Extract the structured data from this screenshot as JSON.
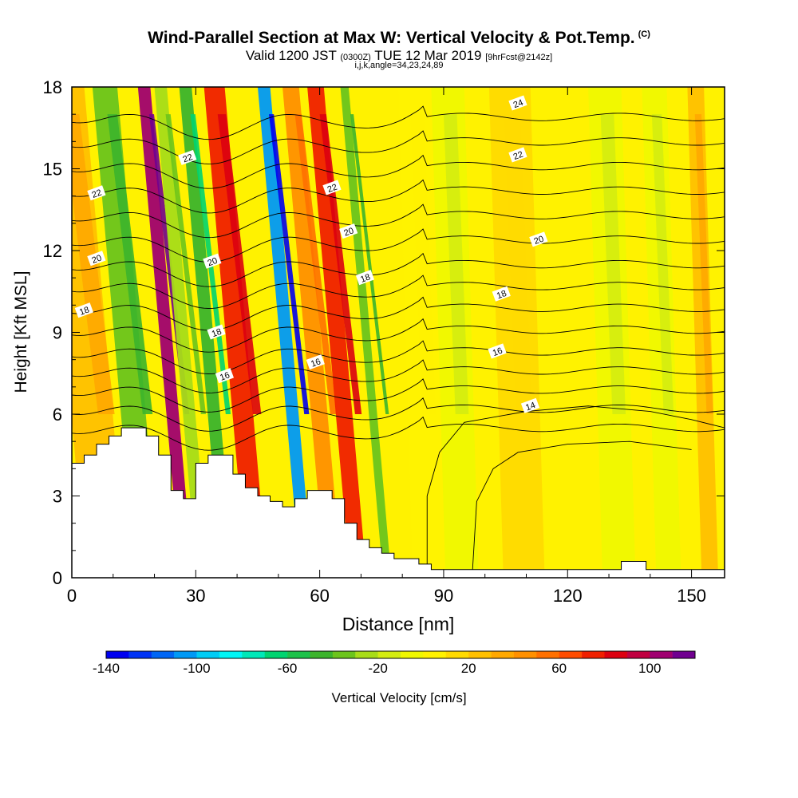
{
  "title": {
    "main": "Wind-Parallel Section at Max W: Vertical Velocity & Pot.Temp.",
    "copyright": "(C)",
    "valid_prefix": "Valid 1200 JST",
    "valid_utc": "(0300Z)",
    "valid_date": "TUE 12 Mar 2019",
    "forecast": "[9hrFcst@2142z]",
    "indices": "i,j,k,angle=34,23,24,89"
  },
  "chart_data": {
    "type": "heatmap",
    "xlabel": "Distance [nm]",
    "ylabel": "Height [Kft MSL]",
    "xlim": [
      0,
      158
    ],
    "ylim": [
      0,
      18
    ],
    "xticks": [
      0,
      30,
      60,
      90,
      120,
      150
    ],
    "yticks": [
      0,
      3,
      6,
      9,
      12,
      15,
      18
    ],
    "terrain": {
      "x": [
        0,
        3,
        6,
        9,
        12,
        18,
        21,
        24,
        27,
        30,
        33,
        36,
        39,
        42,
        45,
        48,
        51,
        54,
        57,
        60,
        63,
        66,
        69,
        72,
        75,
        78,
        81,
        84,
        87,
        90,
        93,
        96,
        100,
        110,
        120,
        130,
        133,
        136,
        139,
        142,
        150,
        158
      ],
      "height": [
        4.2,
        4.5,
        4.9,
        5.2,
        5.5,
        5.2,
        4.5,
        3.2,
        2.9,
        4.2,
        4.5,
        4.5,
        3.8,
        3.3,
        3.0,
        2.8,
        2.6,
        2.9,
        3.2,
        3.2,
        2.9,
        2.0,
        1.4,
        1.1,
        0.9,
        0.7,
        0.7,
        0.5,
        0.3,
        0.3,
        0.3,
        0.3,
        0.3,
        0.3,
        0.3,
        0.3,
        0.6,
        0.6,
        0.3,
        0.3,
        0.3,
        0.3
      ]
    },
    "velocity_bands": [
      {
        "x0": 2,
        "x1": 12,
        "w": 25
      },
      {
        "x0": 14,
        "x1": 20,
        "w": -40
      },
      {
        "x0": 25,
        "x1": 28,
        "w": 100
      },
      {
        "x0": 29,
        "x1": 32,
        "w": -25
      },
      {
        "x0": 35,
        "x1": 38,
        "w": -50
      },
      {
        "x0": 41,
        "x1": 46,
        "w": 70
      },
      {
        "x0": 54,
        "x1": 57,
        "w": -105
      },
      {
        "x0": 60,
        "x1": 64,
        "w": 45
      },
      {
        "x0": 66,
        "x1": 70,
        "w": 70
      },
      {
        "x0": 74,
        "x1": 76,
        "w": -40
      },
      {
        "x0": 82,
        "x1": 90,
        "w": 5
      },
      {
        "x0": 90,
        "x1": 98,
        "w": -10
      },
      {
        "x0": 104,
        "x1": 114,
        "w": 15
      },
      {
        "x0": 128,
        "x1": 136,
        "w": -10
      },
      {
        "x0": 141,
        "x1": 147,
        "w": -10
      },
      {
        "x0": 152,
        "x1": 156,
        "w": 25
      }
    ],
    "pot_temp_contours": {
      "levels": [
        14,
        16,
        18,
        20,
        22,
        24
      ],
      "labels": [
        {
          "text": "14",
          "x": 111,
          "y": 6.3
        },
        {
          "text": "16",
          "x": 37,
          "y": 7.4
        },
        {
          "text": "16",
          "x": 59,
          "y": 7.9
        },
        {
          "text": "16",
          "x": 103,
          "y": 8.3
        },
        {
          "text": "18",
          "x": 3,
          "y": 9.8
        },
        {
          "text": "18",
          "x": 35,
          "y": 9.0
        },
        {
          "text": "18",
          "x": 71,
          "y": 11.0
        },
        {
          "text": "18",
          "x": 104,
          "y": 10.4
        },
        {
          "text": "20",
          "x": 6,
          "y": 11.7
        },
        {
          "text": "20",
          "x": 34,
          "y": 11.6
        },
        {
          "text": "20",
          "x": 67,
          "y": 12.7
        },
        {
          "text": "20",
          "x": 113,
          "y": 12.4
        },
        {
          "text": "22",
          "x": 6,
          "y": 14.1
        },
        {
          "text": "22",
          "x": 28,
          "y": 15.4
        },
        {
          "text": "22",
          "x": 63,
          "y": 14.3
        },
        {
          "text": "22",
          "x": 108,
          "y": 15.5
        },
        {
          "text": "24",
          "x": 108,
          "y": 17.4
        }
      ]
    },
    "colorbar": {
      "label": "Vertical Velocity [cm/s]",
      "tick_labels": [
        "-140",
        "-100",
        "-60",
        "-20",
        "20",
        "60",
        "100"
      ],
      "tick_values": [
        -140,
        -100,
        -60,
        -20,
        20,
        60,
        100
      ],
      "range": [
        -140,
        120
      ],
      "colors": [
        "#0000f0",
        "#0033f5",
        "#0066f5",
        "#0099f5",
        "#00ccf5",
        "#00f5f5",
        "#00e8b8",
        "#00d470",
        "#1cc24a",
        "#3cb42c",
        "#6cc41c",
        "#a8dc18",
        "#d4ec10",
        "#f0f800",
        "#fff200",
        "#ffda00",
        "#ffc000",
        "#ffa800",
        "#ff9000",
        "#ff7000",
        "#ff4c00",
        "#f02000",
        "#dc0010",
        "#c00040",
        "#a00070",
        "#700090"
      ]
    }
  }
}
